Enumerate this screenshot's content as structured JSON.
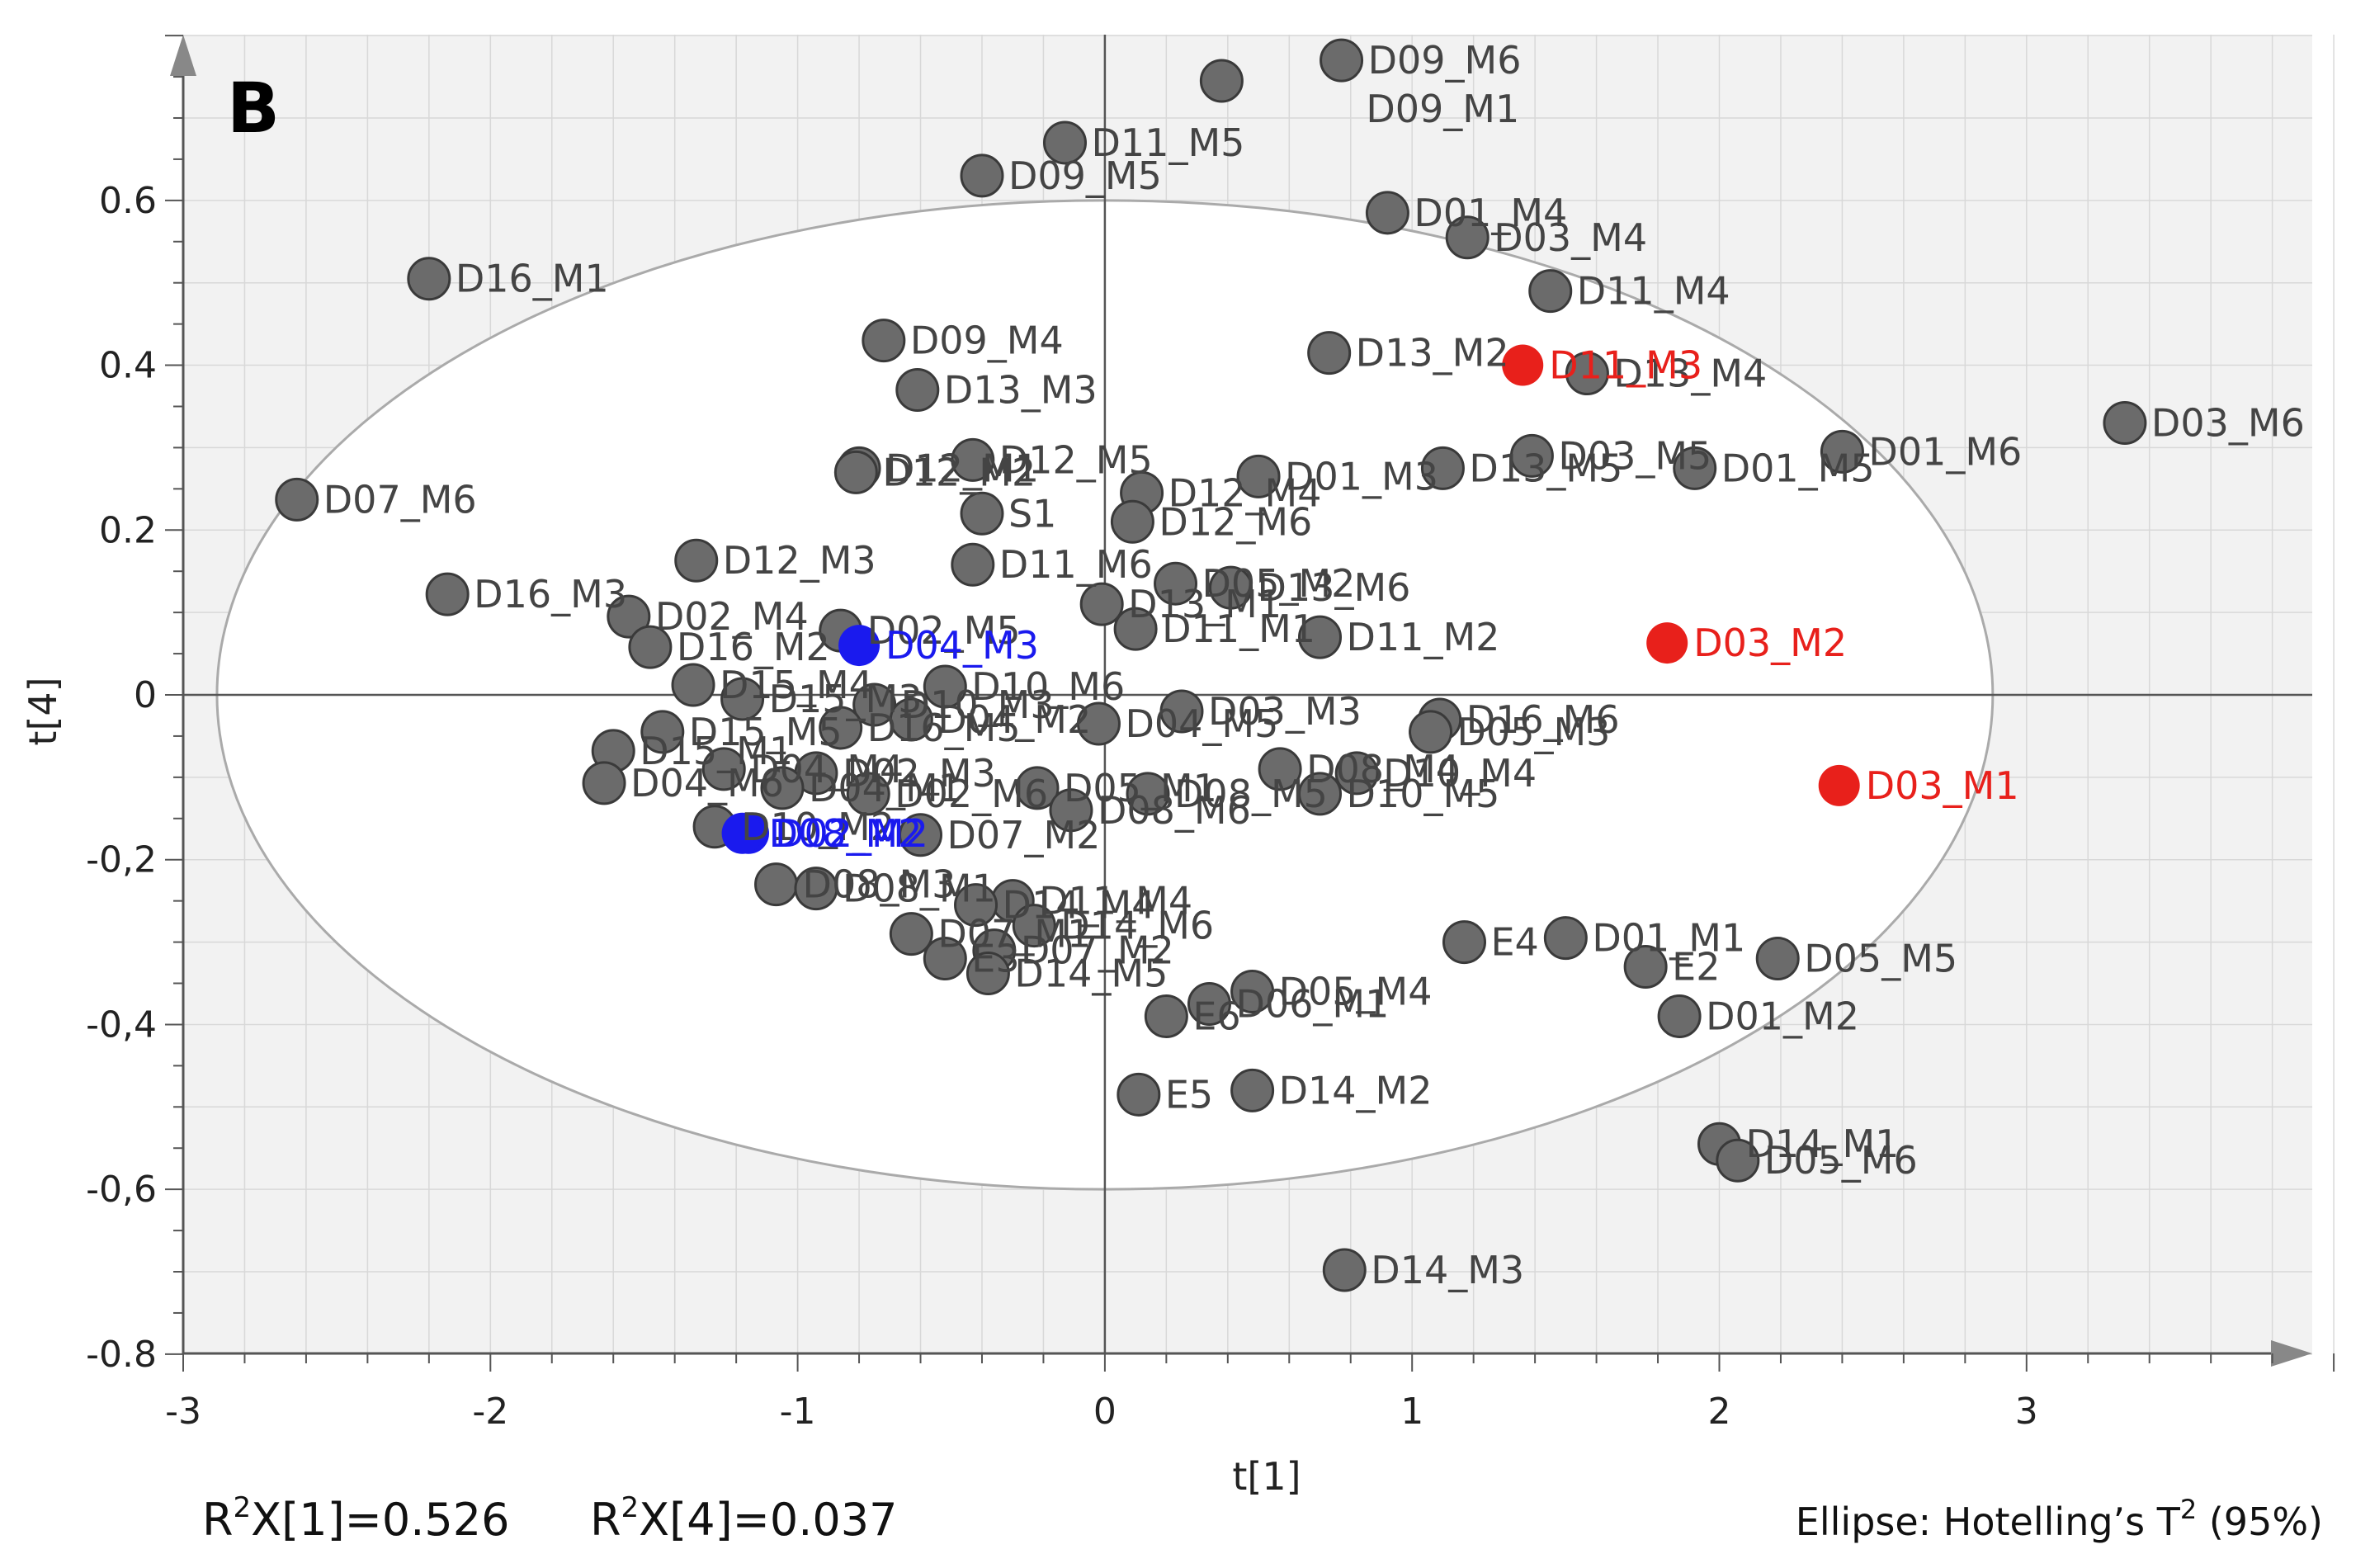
{
  "panel_label": "B",
  "footer": {
    "r2x1_sup": "2",
    "r2x1_rest": "X[1]=0.526",
    "r2x4_sup": "2",
    "r2x4_rest": "X[4]=0.037",
    "ellipse_note_main": "Ellipse: Hotelling’s T",
    "ellipse_note_sup": "2",
    "ellipse_note_tail": " (95%)"
  },
  "colors": {
    "default_point": "#6b6b6b",
    "default_label": "#444444",
    "red": "#e8201b",
    "blue": "#1a1aee",
    "ellipse": "#aaaaaa",
    "plot_bg": "#f2f2f2",
    "grid": "#d8d8d8"
  },
  "chart_data": {
    "type": "scatter",
    "xlabel": "t[1]",
    "ylabel": "t[4]",
    "xlim": [
      -3,
      4
    ],
    "ylim": [
      -0.8,
      0.8
    ],
    "x_ticks": [
      -3,
      -2,
      -1,
      0,
      1,
      2,
      3
    ],
    "x_tick_labels": [
      "-3",
      "-2",
      "-1",
      "0",
      "1",
      "2",
      "3"
    ],
    "y_ticks": [
      0.6,
      0.4,
      0.2,
      0,
      -0.2,
      -0.4,
      -0.6,
      -0.8
    ],
    "y_tick_labels": [
      "0.6",
      "0.4",
      "0.2",
      "0",
      "-0,2",
      "-0,4",
      "-0,6",
      "-0.8"
    ],
    "grid": true,
    "ellipse": {
      "cx": 0,
      "cy": 0,
      "rx": 2.89,
      "ry": 0.6
    },
    "points": [
      {
        "x": 0.77,
        "y": 0.77,
        "label": "D09_M6",
        "group": "default"
      },
      {
        "x": 0.38,
        "y": 0.745,
        "label": "D09_M1",
        "group": "default",
        "lx": 0.85,
        "ly": 0.695
      },
      {
        "x": -0.13,
        "y": 0.67,
        "label": "D11_M5",
        "group": "default"
      },
      {
        "x": -0.4,
        "y": 0.63,
        "label": "D09_M5",
        "group": "default"
      },
      {
        "x": 0.92,
        "y": 0.585,
        "label": "D01_M4",
        "group": "default"
      },
      {
        "x": 1.18,
        "y": 0.555,
        "label": "D03_M4",
        "group": "default"
      },
      {
        "x": -2.2,
        "y": 0.505,
        "label": "D16_M1",
        "group": "default"
      },
      {
        "x": 1.45,
        "y": 0.49,
        "label": "D11_M4",
        "group": "default"
      },
      {
        "x": -0.72,
        "y": 0.43,
        "label": "D09_M4",
        "group": "default"
      },
      {
        "x": 0.73,
        "y": 0.415,
        "label": "D13_M2",
        "group": "default"
      },
      {
        "x": -0.61,
        "y": 0.37,
        "label": "D13_M3",
        "group": "default"
      },
      {
        "x": 1.57,
        "y": 0.39,
        "label": "D13_M4",
        "group": "default"
      },
      {
        "x": 3.32,
        "y": 0.33,
        "label": "D03_M6",
        "group": "default"
      },
      {
        "x": 2.4,
        "y": 0.295,
        "label": "D01_M6",
        "group": "default"
      },
      {
        "x": 1.39,
        "y": 0.29,
        "label": "D03_M5",
        "group": "default"
      },
      {
        "x": 1.92,
        "y": 0.275,
        "label": "D01_M5",
        "group": "default"
      },
      {
        "x": 1.1,
        "y": 0.275,
        "label": "D13_M5",
        "group": "default"
      },
      {
        "x": -0.43,
        "y": 0.285,
        "label": "D12_M5",
        "group": "default"
      },
      {
        "x": -0.8,
        "y": 0.275,
        "label": "D12_M1",
        "group": "default"
      },
      {
        "x": -0.81,
        "y": 0.27,
        "label": "D12_M2",
        "group": "default"
      },
      {
        "x": 0.5,
        "y": 0.265,
        "label": "D01_M3",
        "group": "default"
      },
      {
        "x": 0.12,
        "y": 0.245,
        "label": "D12_M4",
        "group": "default"
      },
      {
        "x": -2.63,
        "y": 0.237,
        "label": "D07_M6",
        "group": "default"
      },
      {
        "x": -0.4,
        "y": 0.22,
        "label": "S1",
        "group": "default"
      },
      {
        "x": 0.09,
        "y": 0.21,
        "label": "D12_M6",
        "group": "default"
      },
      {
        "x": -1.33,
        "y": 0.163,
        "label": "D12_M3",
        "group": "default"
      },
      {
        "x": -0.43,
        "y": 0.158,
        "label": "D11_M6",
        "group": "default"
      },
      {
        "x": 0.23,
        "y": 0.135,
        "label": "D05_M2",
        "group": "default"
      },
      {
        "x": 0.41,
        "y": 0.13,
        "label": "D13_M6",
        "group": "default"
      },
      {
        "x": -2.14,
        "y": 0.122,
        "label": "D16_M3",
        "group": "default"
      },
      {
        "x": -0.01,
        "y": 0.11,
        "label": "D13_M1",
        "group": "default"
      },
      {
        "x": -1.55,
        "y": 0.095,
        "label": "D02_M4",
        "group": "default"
      },
      {
        "x": 0.1,
        "y": 0.08,
        "label": "D11_M1",
        "group": "default"
      },
      {
        "x": 0.7,
        "y": 0.07,
        "label": "D11_M2",
        "group": "default"
      },
      {
        "x": -0.86,
        "y": 0.078,
        "label": "D02_M5",
        "group": "default"
      },
      {
        "x": -1.48,
        "y": 0.058,
        "label": "D16_M2",
        "group": "default"
      },
      {
        "x": -1.34,
        "y": 0.012,
        "label": "D15_M4",
        "group": "default"
      },
      {
        "x": -0.52,
        "y": 0.01,
        "label": "D10_M6",
        "group": "default"
      },
      {
        "x": -1.18,
        "y": -0.005,
        "label": "D15_M3",
        "group": "default"
      },
      {
        "x": -0.75,
        "y": -0.012,
        "label": "D10_M3",
        "group": "default"
      },
      {
        "x": -0.63,
        "y": -0.03,
        "label": "D04_M2",
        "group": "default"
      },
      {
        "x": -0.86,
        "y": -0.04,
        "label": "D16_M5",
        "group": "default"
      },
      {
        "x": -0.02,
        "y": -0.035,
        "label": "D04_M5",
        "group": "default"
      },
      {
        "x": 0.25,
        "y": -0.02,
        "label": "D03_M3",
        "group": "default"
      },
      {
        "x": 1.09,
        "y": -0.03,
        "label": "D16_M6",
        "group": "default"
      },
      {
        "x": 1.06,
        "y": -0.045,
        "label": "D05_M3",
        "group": "default"
      },
      {
        "x": -1.44,
        "y": -0.045,
        "label": "D15_M5",
        "group": "default"
      },
      {
        "x": -1.6,
        "y": -0.068,
        "label": "D15_M1",
        "group": "default"
      },
      {
        "x": -1.24,
        "y": -0.09,
        "label": "D04_M4",
        "group": "default"
      },
      {
        "x": -0.94,
        "y": -0.095,
        "label": "D02_M3",
        "group": "default"
      },
      {
        "x": -1.63,
        "y": -0.107,
        "label": "D04_M6",
        "group": "default"
      },
      {
        "x": -1.05,
        "y": -0.113,
        "label": "D04_M1",
        "group": "default"
      },
      {
        "x": -0.77,
        "y": -0.12,
        "label": "D02_M6",
        "group": "default"
      },
      {
        "x": -0.22,
        "y": -0.113,
        "label": "D05_M1",
        "group": "default"
      },
      {
        "x": 0.57,
        "y": -0.09,
        "label": "D08_M4",
        "group": "default"
      },
      {
        "x": 0.82,
        "y": -0.095,
        "label": "D10_M4",
        "group": "default"
      },
      {
        "x": 0.14,
        "y": -0.12,
        "label": "D08_M5",
        "group": "default"
      },
      {
        "x": 0.7,
        "y": -0.12,
        "label": "D10_M5",
        "group": "default"
      },
      {
        "x": -0.11,
        "y": -0.14,
        "label": "D08_M6",
        "group": "default"
      },
      {
        "x": -1.27,
        "y": -0.16,
        "label": "D10_M2",
        "group": "default"
      },
      {
        "x": -0.6,
        "y": -0.17,
        "label": "D07_M2",
        "group": "default"
      },
      {
        "x": -1.07,
        "y": -0.23,
        "label": "D08_M3",
        "group": "default"
      },
      {
        "x": -0.94,
        "y": -0.235,
        "label": "D08_M1",
        "group": "default"
      },
      {
        "x": -0.3,
        "y": -0.25,
        "label": "D11_M4",
        "group": "default"
      },
      {
        "x": -0.42,
        "y": -0.255,
        "label": "D14_M4",
        "group": "default"
      },
      {
        "x": -0.63,
        "y": -0.29,
        "label": "D07_M1",
        "group": "default"
      },
      {
        "x": -0.23,
        "y": -0.28,
        "label": "D14_M6",
        "group": "default"
      },
      {
        "x": -0.52,
        "y": -0.32,
        "label": "E3",
        "group": "default"
      },
      {
        "x": -0.36,
        "y": -0.31,
        "label": "D07_M2",
        "group": "default"
      },
      {
        "x": -0.38,
        "y": -0.338,
        "label": "D14_M5",
        "group": "default"
      },
      {
        "x": 1.17,
        "y": -0.3,
        "label": "E4",
        "group": "default"
      },
      {
        "x": 1.5,
        "y": -0.295,
        "label": "D01_M1",
        "group": "default"
      },
      {
        "x": 1.76,
        "y": -0.33,
        "label": "E2",
        "group": "default"
      },
      {
        "x": 2.19,
        "y": -0.32,
        "label": "D05_M5",
        "group": "default"
      },
      {
        "x": 0.48,
        "y": -0.36,
        "label": "D05_M4",
        "group": "default"
      },
      {
        "x": 0.34,
        "y": -0.375,
        "label": "D06_M1",
        "group": "default"
      },
      {
        "x": 0.2,
        "y": -0.39,
        "label": "E6",
        "group": "default"
      },
      {
        "x": 1.87,
        "y": -0.39,
        "label": "D01_M2",
        "group": "default"
      },
      {
        "x": 0.48,
        "y": -0.48,
        "label": "D14_M2",
        "group": "default"
      },
      {
        "x": 0.11,
        "y": -0.485,
        "label": "E5",
        "group": "default"
      },
      {
        "x": 2.0,
        "y": -0.545,
        "label": "D14_M1",
        "group": "default"
      },
      {
        "x": 2.06,
        "y": -0.565,
        "label": "D05_M6",
        "group": "default"
      },
      {
        "x": 0.78,
        "y": -0.698,
        "label": "D14_M3",
        "group": "default"
      },
      {
        "x": 1.36,
        "y": 0.4,
        "label": "D11_M3",
        "group": "red"
      },
      {
        "x": 1.83,
        "y": 0.063,
        "label": "D03_M2",
        "group": "red"
      },
      {
        "x": 2.39,
        "y": -0.11,
        "label": "D03_M1",
        "group": "red"
      },
      {
        "x": -0.8,
        "y": 0.06,
        "label": "D04_M3",
        "group": "blue"
      },
      {
        "x": -1.16,
        "y": -0.168,
        "label": "D02_M2",
        "group": "blue"
      },
      {
        "x": -1.18,
        "y": -0.168,
        "label": "D08_M2",
        "group": "blue"
      }
    ]
  }
}
